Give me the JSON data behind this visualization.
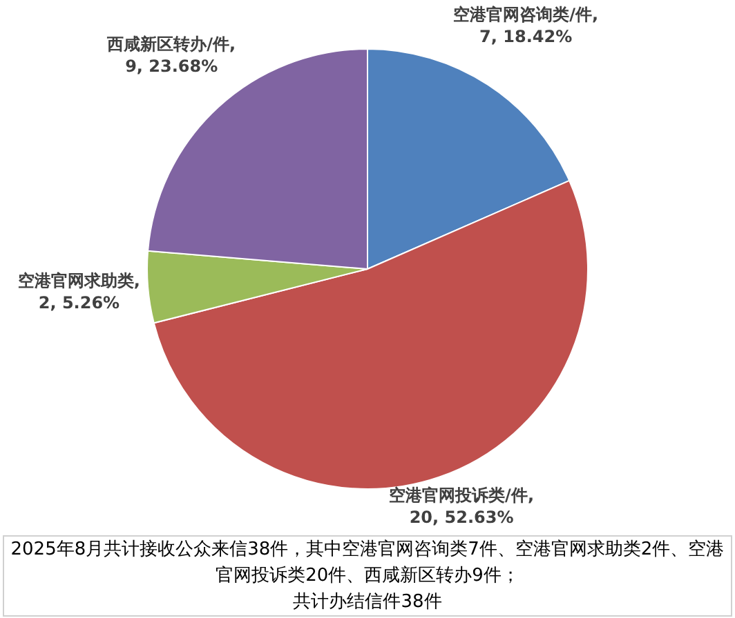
{
  "chart_data": {
    "type": "pie",
    "categories": [
      "空港官网咨询类/件",
      "空港官网投诉类/件",
      "空港官网求助类",
      "西咸新区转办/件"
    ],
    "values": [
      7,
      20,
      2,
      9
    ],
    "colors": [
      "#4f81bd",
      "#c0504d",
      "#9bbb59",
      "#8064a2"
    ],
    "value_labels": [
      ", 7, 18.42%",
      ", 20, 52.63%",
      ", 2, 5.26%",
      ", 9, 23.68%"
    ],
    "legend": false,
    "annotations": [
      "2025年8月共计接收公众来信38件，其中空港官网咨询类7件、空港官网求助类2件、空港官网投诉类20件、西咸新区转办9件；",
      "共计办结信件38件"
    ]
  }
}
